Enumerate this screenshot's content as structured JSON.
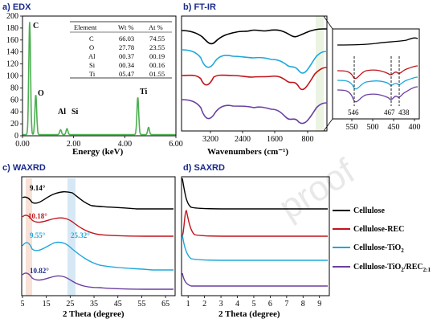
{
  "chart_data": [
    {
      "panel": "a) EDX",
      "type": "line",
      "xlabel": "Energy (keV)",
      "ylabel": "",
      "xlim": [
        0,
        6
      ],
      "ylim": [
        0,
        200
      ],
      "xticks": [
        "0.00",
        "2.00",
        "4.00",
        "6.00"
      ],
      "yticks": [
        "0",
        "20",
        "40",
        "60",
        "80",
        "100",
        "120",
        "140",
        "160",
        "180",
        "200"
      ],
      "series": [
        {
          "color": "#4caf50",
          "peaks": [
            {
              "label": "C",
              "x": 0.28,
              "y": 188
            },
            {
              "label": "O",
              "x": 0.52,
              "y": 66
            },
            {
              "label": "Al",
              "x": 1.49,
              "y": 8
            },
            {
              "label": "Si",
              "x": 1.74,
              "y": 10
            },
            {
              "label": "Ti",
              "x": 4.51,
              "y": 62
            },
            {
              "label": "",
              "x": 4.93,
              "y": 12
            }
          ]
        }
      ],
      "table": {
        "headers": [
          "Element",
          "Wt %",
          "At %"
        ],
        "rows": [
          [
            "C",
            "66.03",
            "74.55"
          ],
          [
            "O",
            "27.78",
            "23.55"
          ],
          [
            "Al",
            "00.37",
            "00.19"
          ],
          [
            "Si",
            "00.34",
            "00.16"
          ],
          [
            "Ti",
            "05.47",
            "01.55"
          ]
        ]
      }
    },
    {
      "panel": "b) FT-IR",
      "type": "line",
      "xlabel": "Wavenumbers (cm⁻¹)",
      "xlim": [
        4000,
        400
      ],
      "xticks": [
        "3200",
        "2400",
        "1600",
        "800"
      ],
      "inset": {
        "xticks": [
          "550",
          "500",
          "450",
          "400"
        ],
        "xlim": [
          600,
          400
        ],
        "markers": [
          "546",
          "467",
          "438"
        ]
      }
    },
    {
      "panel": "c) WAXRD",
      "type": "line",
      "xlabel": "2 Theta (degree)",
      "xlim": [
        5,
        68
      ],
      "xticks": [
        "5",
        "15",
        "25",
        "35",
        "45",
        "55",
        "65"
      ],
      "annotations": [
        "9.14°",
        "10.18°",
        "9.55°",
        "25.32°",
        "10.82°"
      ]
    },
    {
      "panel": "d) SAXRD",
      "type": "line",
      "xlabel": "2 Theta (degree)",
      "xlim": [
        0.6,
        9.6
      ],
      "xticks": [
        "1",
        "2",
        "3",
        "4",
        "5",
        "6",
        "7",
        "8",
        "9"
      ]
    }
  ],
  "legend": [
    {
      "label": "Cellulose",
      "sub": "",
      "color": "#000000"
    },
    {
      "label": "Cellulose-REC",
      "sub": "",
      "color": "#c0141b"
    },
    {
      "label": "Cellulose-TiO",
      "sub": "2",
      "color": "#1ea7dc"
    },
    {
      "label": "Cellulose-TiO",
      "sub": "2",
      "tail": "/REC",
      "tailsub": "2:1",
      "color": "#6a3fa0"
    }
  ],
  "watermark": "proof",
  "colors": {
    "black": "#000000",
    "red": "#c0141b",
    "cyan": "#1ea7dc",
    "purple": "#6a3fa0",
    "green": "#4caf50"
  }
}
